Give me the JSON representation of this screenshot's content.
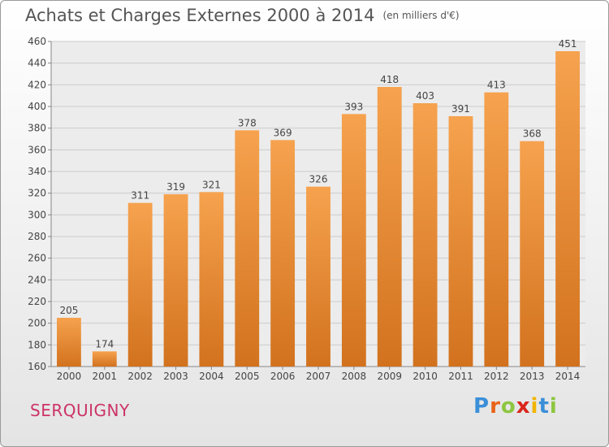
{
  "header": {
    "title": "Achats et Charges Externes 2000 à 2014",
    "subtitle": "(en milliers d'€)"
  },
  "footer": {
    "commune": "SERQUIGNY",
    "brand_letters": [
      {
        "char": "P",
        "color": "#3b8fd8"
      },
      {
        "char": "r",
        "color": "#e8631a"
      },
      {
        "char": "o",
        "color": "#8cc63f"
      },
      {
        "char": "x",
        "color": "#d9261c"
      },
      {
        "char": "i",
        "color": "#f0b400"
      },
      {
        "char": "t",
        "color": "#3b8fd8"
      },
      {
        "char": "i",
        "color": "#8cc63f"
      }
    ]
  },
  "chart_data": {
    "type": "bar",
    "title": "Achats et Charges Externes 2000 à 2014",
    "unit": "(en milliers d'€)",
    "xlabel": "",
    "ylabel": "",
    "categories": [
      "2000",
      "2001",
      "2002",
      "2003",
      "2004",
      "2005",
      "2006",
      "2007",
      "2008",
      "2009",
      "2010",
      "2011",
      "2012",
      "2013",
      "2014"
    ],
    "values": [
      205,
      174,
      311,
      319,
      321,
      378,
      369,
      326,
      393,
      418,
      403,
      391,
      413,
      368,
      451
    ],
    "ylim": [
      160,
      460
    ],
    "yticks": [
      160,
      180,
      200,
      220,
      240,
      260,
      280,
      300,
      320,
      340,
      360,
      380,
      400,
      420,
      440,
      460
    ],
    "grid": true,
    "colors": {
      "bar_top": "#f6a24e",
      "bar_bottom": "#d2721e",
      "grid": "#cccccc",
      "axis_text": "#444444"
    }
  }
}
